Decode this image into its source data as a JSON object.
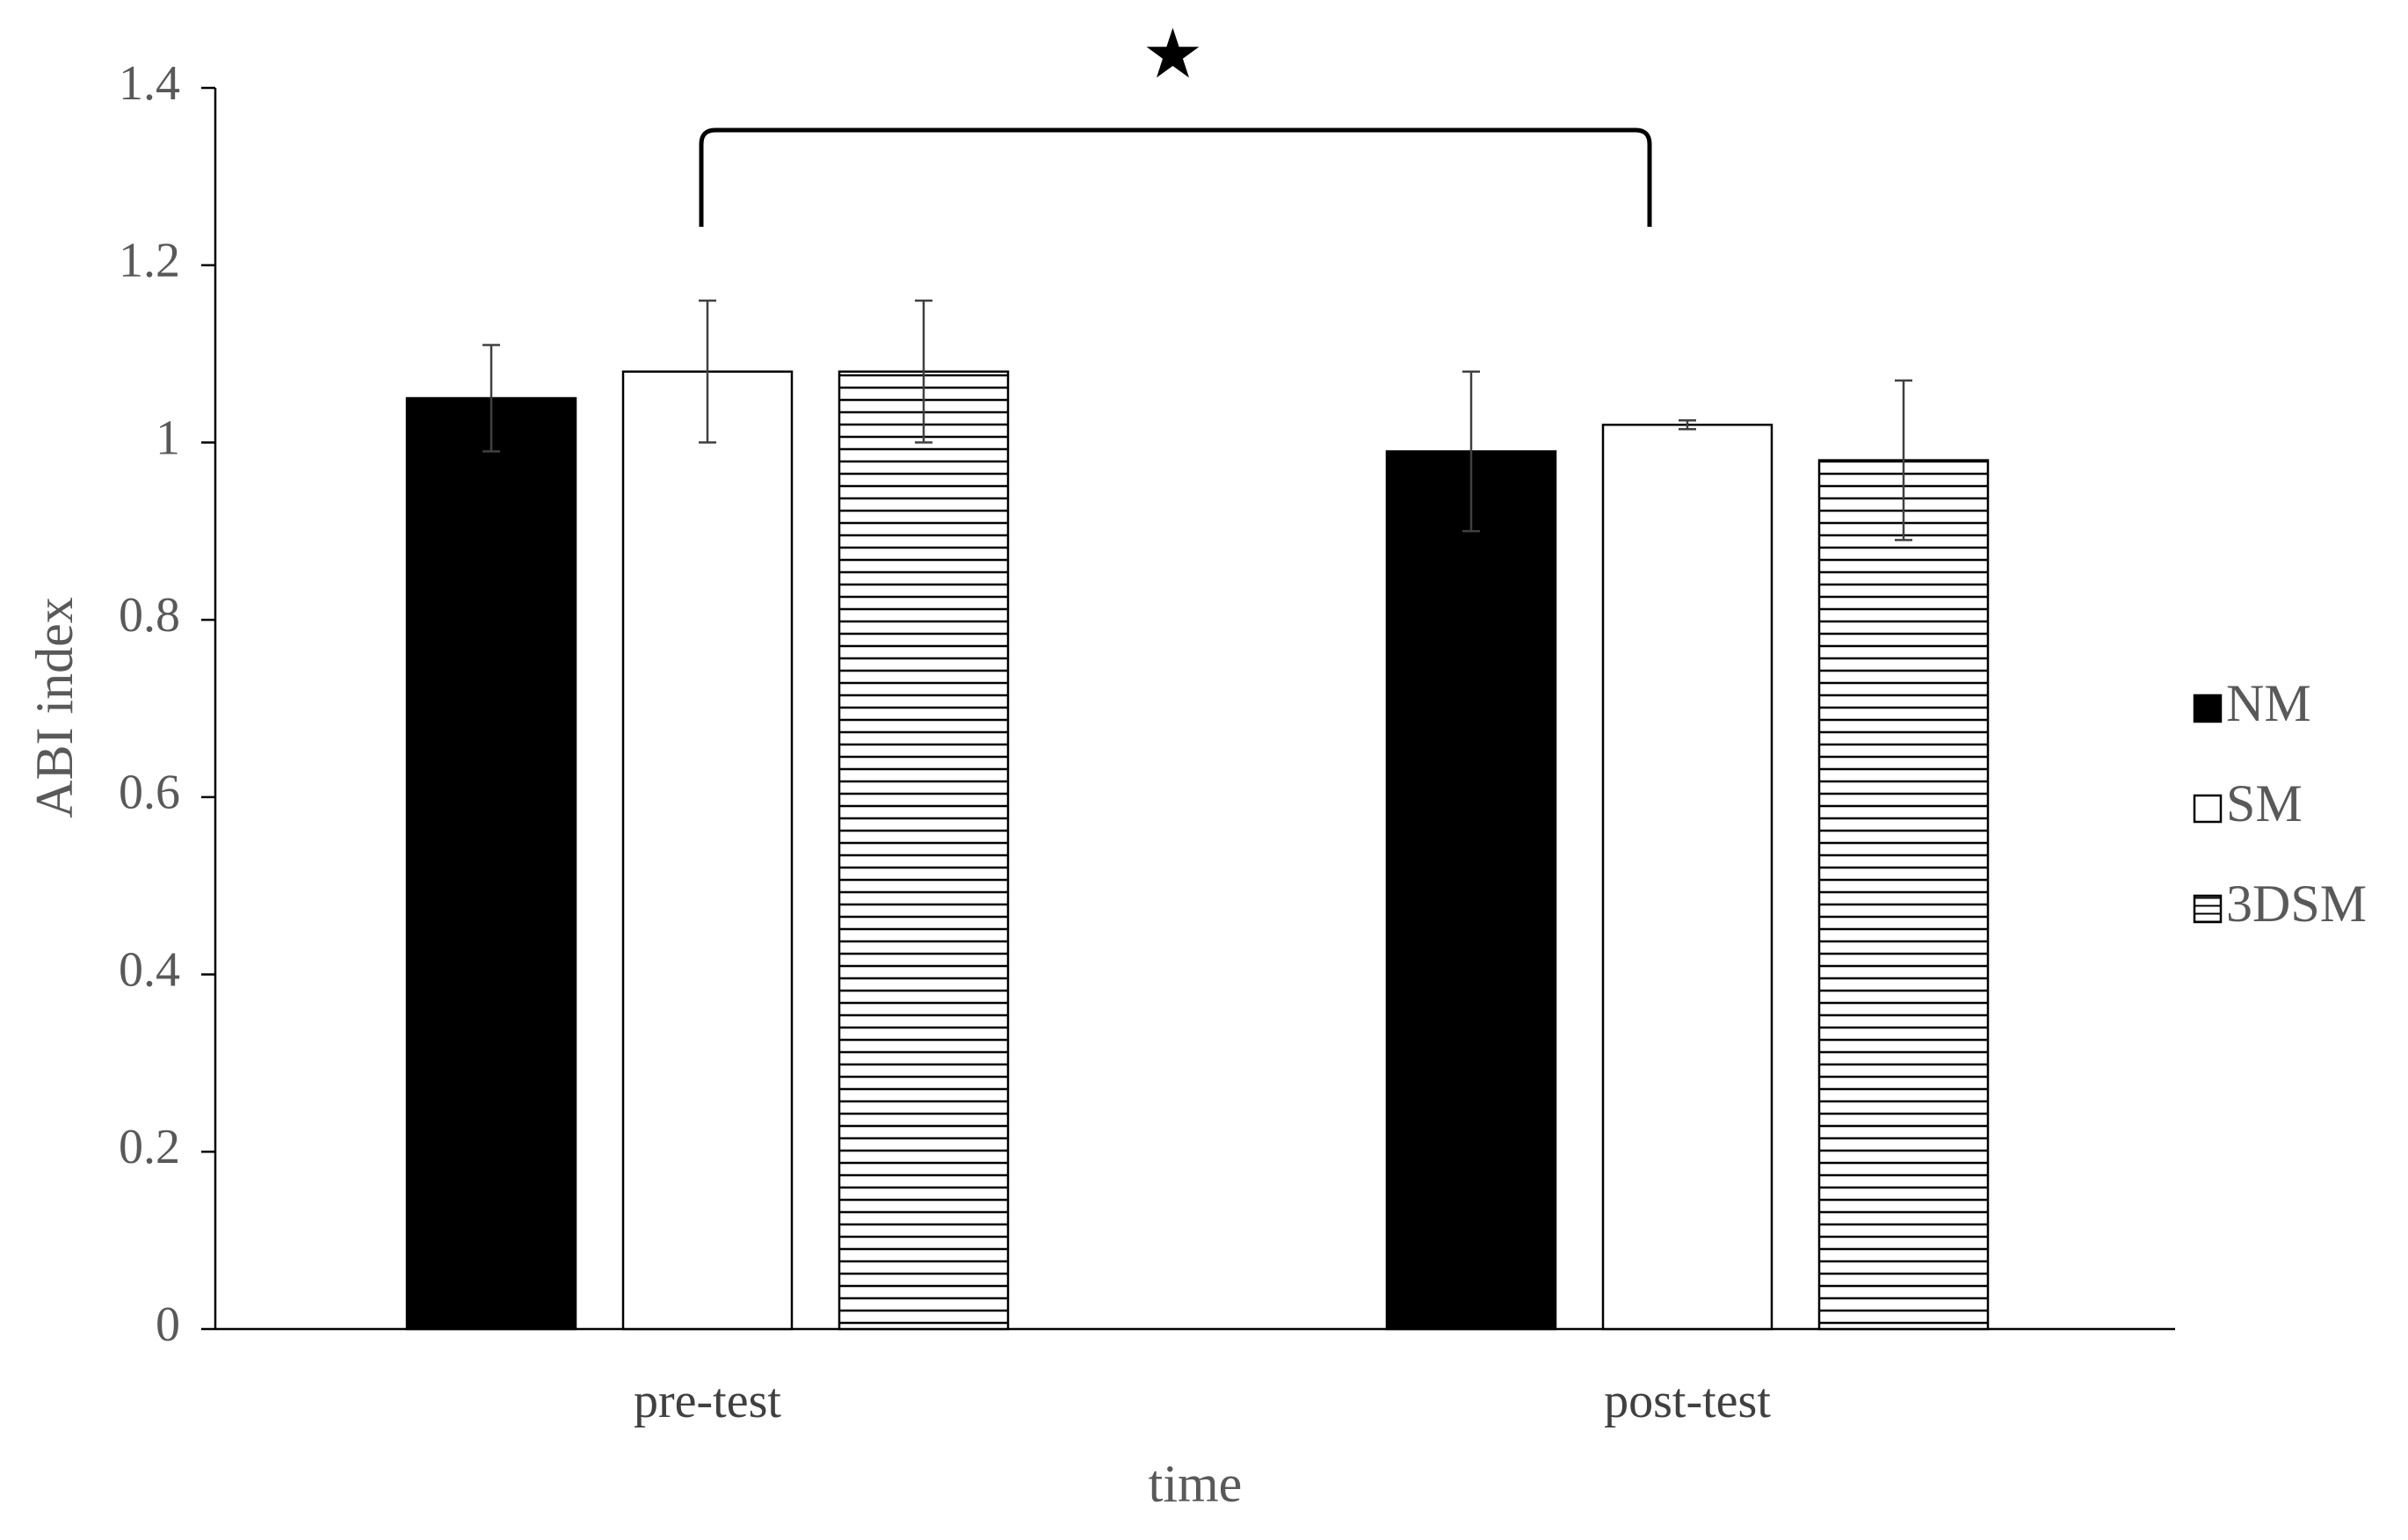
{
  "chart_data": {
    "type": "bar",
    "categories": [
      "pre-test",
      "post-test"
    ],
    "series": [
      {
        "name": "NM",
        "values": [
          1.05,
          0.99
        ],
        "error": [
          0.06,
          0.09
        ],
        "fill": "solid",
        "color": "#000000"
      },
      {
        "name": "SM",
        "values": [
          1.08,
          1.02
        ],
        "error": [
          0.08,
          0.005
        ],
        "fill": "empty",
        "color": "#ffffff"
      },
      {
        "name": "3DSM",
        "values": [
          1.08,
          0.98
        ],
        "error": [
          0.08,
          0.09
        ],
        "fill": "horizontal",
        "color": "#ffffff"
      }
    ],
    "xlabel": "time",
    "ylabel": "ABI index",
    "ylim": [
      0,
      1.4
    ],
    "yticks": [
      0,
      0.2,
      0.4,
      0.6,
      0.8,
      1,
      1.2,
      1.4
    ],
    "ytick_labels": [
      "0",
      "0.2",
      "0.4",
      "0.6",
      "0.8",
      "1",
      "1.2",
      "1.4"
    ],
    "grid": false,
    "legend_position": "right",
    "annotations": [
      {
        "type": "significance-bracket",
        "from": "pre-test",
        "to": "post-test",
        "marker": "★"
      }
    ]
  }
}
